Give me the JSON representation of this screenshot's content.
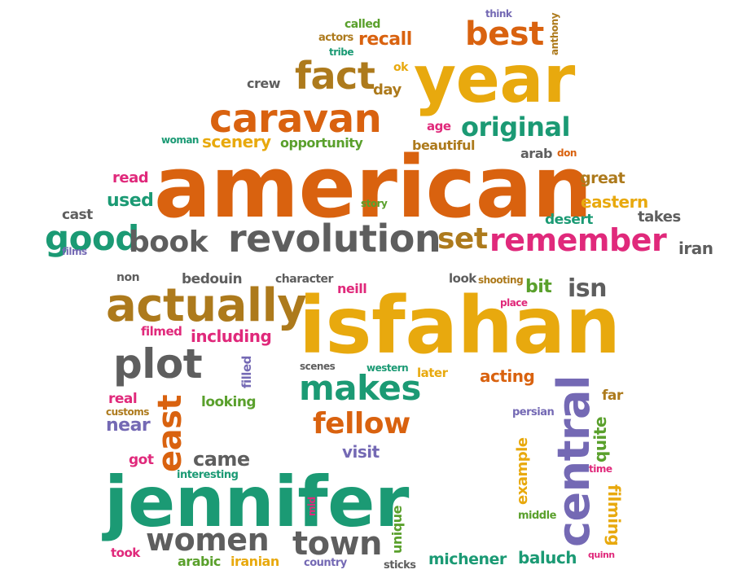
{
  "colors": {
    "orange": "#d9620f",
    "gold": "#e8a90e",
    "brown": "#ad7a1c",
    "teal": "#1b9a74",
    "gray": "#5e5e5e",
    "pink": "#e0297b",
    "purple": "#7469b4",
    "green": "#5aa02c"
  },
  "words": {
    "american": "american",
    "isfahan": "isfahan",
    "jennifer": "jennifer",
    "year": "year",
    "actually": "actually",
    "caravan": "caravan",
    "revolution": "revolution",
    "central": "central",
    "fact": "fact",
    "best": "best",
    "original": "original",
    "remember": "remember",
    "good": "good",
    "book": "book",
    "set": "set",
    "plot": "plot",
    "makes": "makes",
    "fellow": "fellow",
    "east": "east",
    "women": "women",
    "town": "town",
    "called": "called",
    "think": "think",
    "actors": "actors",
    "recall": "recall",
    "tribe": "tribe",
    "anthony": "anthony",
    "crew": "crew",
    "ok": "ok",
    "day": "day",
    "age": "age",
    "woman": "woman",
    "scenery": "scenery",
    "opportunity": "opportunity",
    "beautiful": "beautiful",
    "arab": "arab",
    "don": "don",
    "read": "read",
    "great": "great",
    "used": "used",
    "story": "story",
    "eastern": "eastern",
    "cast": "cast",
    "desert": "desert",
    "takes": "takes",
    "films": "films",
    "iran": "iran",
    "non": "non",
    "bedouin": "bedouin",
    "character": "character",
    "look": "look",
    "shooting": "shooting",
    "bit": "bit",
    "isn": "isn",
    "neill": "neill",
    "place": "place",
    "filmed": "filmed",
    "including": "including",
    "filled": "filled",
    "scenes": "scenes",
    "western": "western",
    "later": "later",
    "acting": "acting",
    "real": "real",
    "customs": "customs",
    "looking": "looking",
    "near": "near",
    "far": "far",
    "persian": "persian",
    "quite": "quite",
    "visit": "visit",
    "example": "example",
    "got": "got",
    "came": "came",
    "interesting": "interesting",
    "time": "time",
    "mid": "mid",
    "unique": "unique",
    "middle": "middle",
    "filming": "filming",
    "took": "took",
    "arabic": "arabic",
    "iranian": "iranian",
    "country": "country",
    "sticks": "sticks",
    "michener": "michener",
    "baluch": "baluch",
    "quinn": "quinn"
  }
}
